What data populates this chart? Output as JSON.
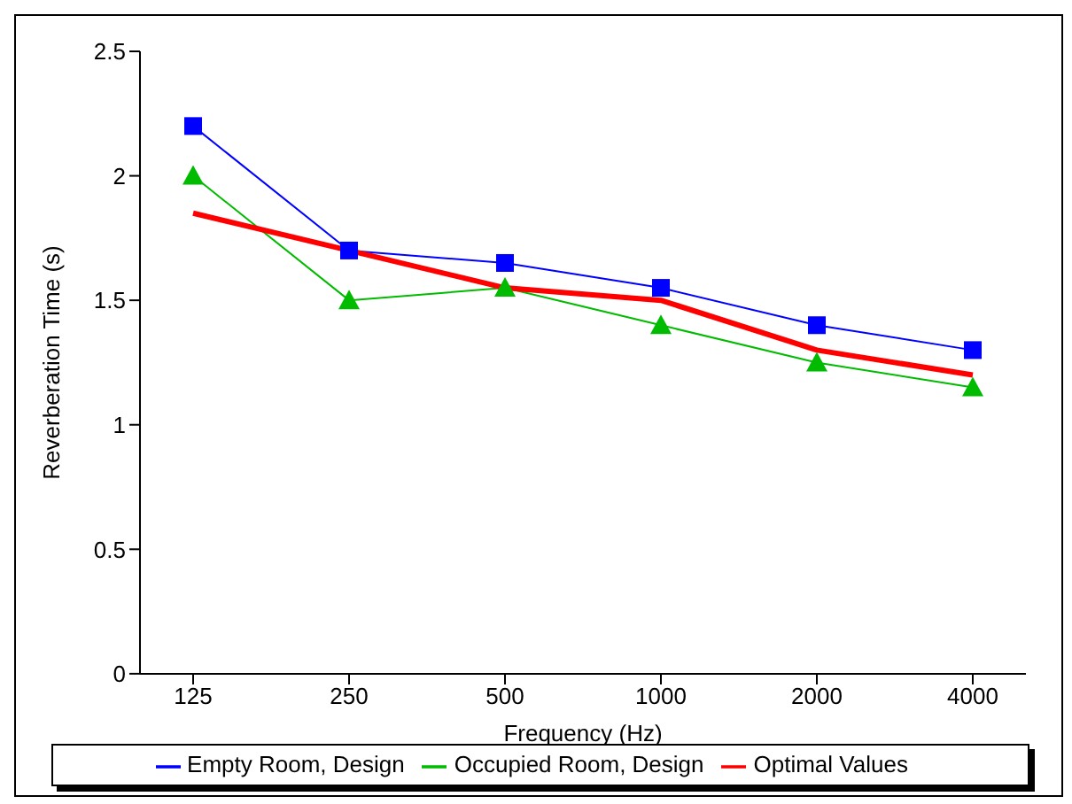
{
  "chart_data": {
    "type": "line",
    "xlabel": "Frequency (Hz)",
    "ylabel": "Reverberation Time (s)",
    "categories": [
      "125",
      "250",
      "500",
      "1000",
      "2000",
      "4000"
    ],
    "series": [
      {
        "name": "Empty Room, Design",
        "color": "#0000ff",
        "marker": "square",
        "values": [
          2.2,
          1.7,
          1.65,
          1.55,
          1.4,
          1.3
        ]
      },
      {
        "name": "Occupied Room, Design",
        "color": "#00bb00",
        "marker": "triangle",
        "values": [
          2.0,
          1.5,
          1.55,
          1.4,
          1.25,
          1.15
        ]
      },
      {
        "name": "Optimal Values",
        "color": "#ff0000",
        "marker": "none",
        "values": [
          1.85,
          1.7,
          1.55,
          1.5,
          1.3,
          1.2
        ]
      }
    ],
    "ylim": [
      0,
      2.5
    ],
    "yticks": [
      0,
      0.5,
      1,
      1.5,
      2,
      2.5
    ],
    "grid": false,
    "legend": "bottom",
    "line_style": "solid"
  }
}
